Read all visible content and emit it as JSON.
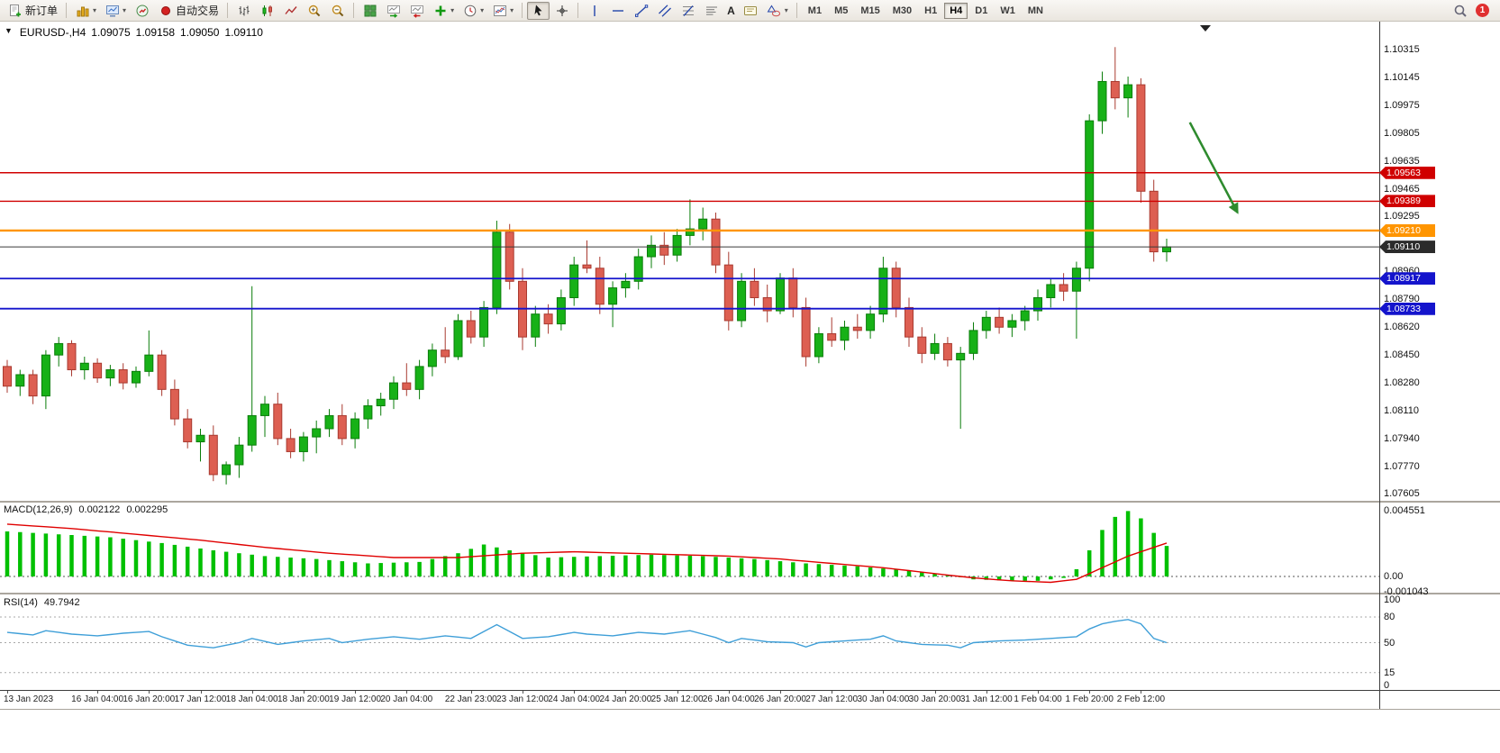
{
  "icons": {
    "one_click_toggle": "▼",
    "dropdown_caret": "▾"
  },
  "toolbar": {
    "new_order_label": "新订单",
    "autotrading_label": "自动交易",
    "text_tool_label": "A",
    "timeframes": [
      "M1",
      "M5",
      "M15",
      "M30",
      "H1",
      "H4",
      "D1",
      "W1",
      "MN"
    ],
    "active_timeframe": "H4",
    "notification_badge": "1"
  },
  "chart": {
    "symbol_period": "EURUSD-,H4",
    "ohlc": {
      "open": "1.09075",
      "high": "1.09158",
      "low": "1.09050",
      "close": "1.09110"
    },
    "scale": {
      "min": 1.0756,
      "max": 1.1048
    },
    "price_axis_labels": [
      "1.10315",
      "1.10145",
      "1.09975",
      "1.09805",
      "1.09635",
      "1.09465",
      "1.09295",
      "1.08960",
      "1.08790",
      "1.08620",
      "1.08450",
      "1.08280",
      "1.08110",
      "1.07940",
      "1.07770",
      "1.07605"
    ],
    "hlines": [
      {
        "price": 1.09563,
        "label": "1.09563",
        "color": "#d00000",
        "width": 1.4
      },
      {
        "price": 1.09389,
        "label": "1.09389",
        "color": "#d00000",
        "width": 1.4
      },
      {
        "price": 1.0921,
        "label": "1.09210",
        "color": "#ff9500",
        "width": 2.4
      },
      {
        "price": 1.08917,
        "label": "1.08917",
        "color": "#1414cc",
        "width": 1.8
      },
      {
        "price": 1.08733,
        "label": "1.08733",
        "color": "#1414cc",
        "width": 1.8
      }
    ],
    "bid_line": {
      "price": 1.0911,
      "label": "1.09110",
      "color": "#3a3a3a",
      "tag_bg": "#2b2b2b"
    },
    "candles": [
      [
        1.0838,
        1.0842,
        1.0822,
        1.0826
      ],
      [
        1.0826,
        1.0836,
        1.082,
        1.0833
      ],
      [
        1.0833,
        1.0836,
        1.0815,
        1.082
      ],
      [
        1.082,
        1.0848,
        1.0812,
        1.0845
      ],
      [
        1.0845,
        1.0856,
        1.0838,
        1.0852
      ],
      [
        1.0852,
        1.0854,
        1.0832,
        1.0836
      ],
      [
        1.0836,
        1.0844,
        1.083,
        1.084
      ],
      [
        1.084,
        1.0843,
        1.0828,
        1.0831
      ],
      [
        1.0831,
        1.0839,
        1.0826,
        1.0836
      ],
      [
        1.0836,
        1.084,
        1.0824,
        1.0828
      ],
      [
        1.0828,
        1.0838,
        1.0825,
        1.0835
      ],
      [
        1.0835,
        1.086,
        1.0832,
        1.0845
      ],
      [
        1.0845,
        1.0848,
        1.082,
        1.0824
      ],
      [
        1.0824,
        1.083,
        1.0802,
        1.0806
      ],
      [
        1.0806,
        1.0812,
        1.0788,
        1.0792
      ],
      [
        1.0792,
        1.08,
        1.078,
        1.0796
      ],
      [
        1.0796,
        1.0802,
        1.0768,
        1.0772
      ],
      [
        1.0772,
        1.078,
        1.0766,
        1.0778
      ],
      [
        1.0778,
        1.0795,
        1.077,
        1.079
      ],
      [
        1.079,
        1.0887,
        1.0786,
        1.0808
      ],
      [
        1.0808,
        1.082,
        1.0795,
        1.0815
      ],
      [
        1.0815,
        1.0822,
        1.079,
        1.0794
      ],
      [
        1.0794,
        1.08,
        1.0782,
        1.0786
      ],
      [
        1.0786,
        1.0798,
        1.078,
        1.0795
      ],
      [
        1.0795,
        1.0805,
        1.0785,
        1.08
      ],
      [
        1.08,
        1.0812,
        1.0795,
        1.0808
      ],
      [
        1.0808,
        1.0815,
        1.079,
        1.0794
      ],
      [
        1.0794,
        1.081,
        1.0788,
        1.0806
      ],
      [
        1.0806,
        1.0818,
        1.08,
        1.0814
      ],
      [
        1.0814,
        1.0822,
        1.0808,
        1.0818
      ],
      [
        1.0818,
        1.0832,
        1.0812,
        1.0828
      ],
      [
        1.0828,
        1.084,
        1.082,
        1.0824
      ],
      [
        1.0824,
        1.0842,
        1.0818,
        1.0838
      ],
      [
        1.0838,
        1.0852,
        1.0832,
        1.0848
      ],
      [
        1.0848,
        1.0862,
        1.084,
        1.0844
      ],
      [
        1.0844,
        1.087,
        1.0842,
        1.0866
      ],
      [
        1.0866,
        1.0872,
        1.0852,
        1.0856
      ],
      [
        1.0856,
        1.0878,
        1.085,
        1.0874
      ],
      [
        1.0874,
        1.0927,
        1.087,
        1.092
      ],
      [
        1.092,
        1.0925,
        1.0885,
        1.089
      ],
      [
        1.089,
        1.0898,
        1.0848,
        1.0856
      ],
      [
        1.0856,
        1.0875,
        1.085,
        1.087
      ],
      [
        1.087,
        1.0876,
        1.0858,
        1.0864
      ],
      [
        1.0864,
        1.0885,
        1.086,
        1.088
      ],
      [
        1.088,
        1.0905,
        1.0875,
        1.09
      ],
      [
        1.09,
        1.0915,
        1.0895,
        1.0898
      ],
      [
        1.0898,
        1.0905,
        1.087,
        1.0876
      ],
      [
        1.0876,
        1.089,
        1.0862,
        1.0886
      ],
      [
        1.0886,
        1.0895,
        1.088,
        1.089
      ],
      [
        1.089,
        1.091,
        1.0885,
        1.0905
      ],
      [
        1.0905,
        1.0918,
        1.0898,
        1.0912
      ],
      [
        1.0912,
        1.092,
        1.09,
        1.0906
      ],
      [
        1.0906,
        1.0922,
        1.0902,
        1.0918
      ],
      [
        1.0918,
        1.094,
        1.0912,
        1.0922
      ],
      [
        1.0922,
        1.0935,
        1.0915,
        1.0928
      ],
      [
        1.0928,
        1.0932,
        1.0895,
        1.09
      ],
      [
        1.09,
        1.0908,
        1.086,
        1.0866
      ],
      [
        1.0866,
        1.0895,
        1.0862,
        1.089
      ],
      [
        1.089,
        1.0898,
        1.0875,
        1.088
      ],
      [
        1.088,
        1.0888,
        1.0865,
        1.0872
      ],
      [
        1.0872,
        1.0895,
        1.087,
        1.0892
      ],
      [
        1.0892,
        1.0898,
        1.0868,
        1.0874
      ],
      [
        1.0874,
        1.088,
        1.0838,
        1.0844
      ],
      [
        1.0844,
        1.0862,
        1.084,
        1.0858
      ],
      [
        1.0858,
        1.0868,
        1.085,
        1.0854
      ],
      [
        1.0854,
        1.0866,
        1.0848,
        1.0862
      ],
      [
        1.0862,
        1.087,
        1.0855,
        1.086
      ],
      [
        1.086,
        1.0875,
        1.0855,
        1.087
      ],
      [
        1.087,
        1.0905,
        1.0865,
        1.0898
      ],
      [
        1.0898,
        1.0902,
        1.0868,
        1.0874
      ],
      [
        1.0874,
        1.088,
        1.085,
        1.0856
      ],
      [
        1.0856,
        1.0862,
        1.084,
        1.0846
      ],
      [
        1.0846,
        1.0858,
        1.0842,
        1.0852
      ],
      [
        1.0852,
        1.0856,
        1.0838,
        1.0842
      ],
      [
        1.0842,
        1.085,
        1.08,
        1.0846
      ],
      [
        1.0846,
        1.0865,
        1.0842,
        1.086
      ],
      [
        1.086,
        1.0872,
        1.0855,
        1.0868
      ],
      [
        1.0868,
        1.0874,
        1.0858,
        1.0862
      ],
      [
        1.0862,
        1.087,
        1.0856,
        1.0866
      ],
      [
        1.0866,
        1.0875,
        1.086,
        1.0872
      ],
      [
        1.0872,
        1.0885,
        1.0866,
        1.088
      ],
      [
        1.088,
        1.0892,
        1.0874,
        1.0888
      ],
      [
        1.0888,
        1.0895,
        1.0878,
        1.0884
      ],
      [
        1.0884,
        1.0902,
        1.0855,
        1.0898
      ],
      [
        1.0898,
        1.0992,
        1.089,
        1.0988
      ],
      [
        1.0988,
        1.1018,
        1.098,
        1.1012
      ],
      [
        1.1012,
        1.1033,
        1.0995,
        1.1002
      ],
      [
        1.1002,
        1.1015,
        1.099,
        1.101
      ],
      [
        1.101,
        1.1014,
        1.0938,
        1.0945
      ],
      [
        1.0945,
        1.0952,
        1.0902,
        1.0908
      ],
      [
        1.0908,
        1.0916,
        1.0902,
        1.0911
      ]
    ],
    "time_axis": [
      {
        "label": "13 Jan 2023",
        "bar": 0
      },
      {
        "label": "16 Jan 04:00",
        "bar": 7
      },
      {
        "label": "16 Jan 20:00",
        "bar": 11
      },
      {
        "label": "17 Jan 12:00",
        "bar": 15
      },
      {
        "label": "18 Jan 04:00",
        "bar": 19
      },
      {
        "label": "18 Jan 20:00",
        "bar": 23
      },
      {
        "label": "19 Jan 12:00",
        "bar": 27
      },
      {
        "label": "20 Jan 04:00",
        "bar": 31
      },
      {
        "label": "22 Jan 23:00",
        "bar": 36
      },
      {
        "label": "23 Jan 12:00",
        "bar": 40
      },
      {
        "label": "24 Jan 04:00",
        "bar": 44
      },
      {
        "label": "24 Jan 20:00",
        "bar": 48
      },
      {
        "label": "25 Jan 12:00",
        "bar": 52
      },
      {
        "label": "26 Jan 04:00",
        "bar": 56
      },
      {
        "label": "26 Jan 20:00",
        "bar": 60
      },
      {
        "label": "27 Jan 12:00",
        "bar": 64
      },
      {
        "label": "30 Jan 04:00",
        "bar": 68
      },
      {
        "label": "30 Jan 20:00",
        "bar": 72
      },
      {
        "label": "31 Jan 12:00",
        "bar": 76
      },
      {
        "label": "1 Feb 04:00",
        "bar": 80
      },
      {
        "label": "1 Feb 20:00",
        "bar": 84
      },
      {
        "label": "2 Feb 12:00",
        "bar": 88
      }
    ],
    "annotations": {
      "arrow": {
        "bar1": 91.8,
        "price1": 1.0987,
        "bar2": 95.5,
        "price2": 1.0932,
        "color": "#2e8b2e"
      }
    }
  },
  "macd": {
    "name": "MACD(12,26,9)",
    "value_main": "0.002122",
    "value_signal": "0.002295",
    "axis": [
      {
        "label": "0.004551",
        "v": 0.004551
      },
      {
        "label": "0.00",
        "v": 0
      },
      {
        "label": "-0.001043",
        "v": -0.001043
      }
    ],
    "hist_color": "#00c000",
    "signal_color": "#e00000",
    "histogram": [
      [
        0,
        0.0031
      ],
      [
        4,
        0.0029
      ],
      [
        8,
        0.0027
      ],
      [
        12,
        0.0023
      ],
      [
        16,
        0.0018
      ],
      [
        20,
        0.0014
      ],
      [
        24,
        0.0012
      ],
      [
        28,
        0.0009
      ],
      [
        32,
        0.001
      ],
      [
        35,
        0.0016
      ],
      [
        37,
        0.0022
      ],
      [
        39,
        0.0018
      ],
      [
        42,
        0.0013
      ],
      [
        46,
        0.0014
      ],
      [
        50,
        0.0015
      ],
      [
        54,
        0.0014
      ],
      [
        58,
        0.0012
      ],
      [
        62,
        0.0009
      ],
      [
        66,
        0.0007
      ],
      [
        70,
        0.0004
      ],
      [
        73,
        0.0001
      ],
      [
        75,
        -0.0002
      ],
      [
        78,
        -0.0003
      ],
      [
        80,
        -0.0003
      ],
      [
        82,
        -0.0001
      ],
      [
        83,
        0.0005
      ],
      [
        84,
        0.0018
      ],
      [
        85,
        0.0032
      ],
      [
        86,
        0.0041
      ],
      [
        87,
        0.0045
      ],
      [
        88,
        0.004
      ],
      [
        89,
        0.003
      ],
      [
        90,
        0.0021
      ]
    ],
    "signal": [
      [
        0,
        0.0036
      ],
      [
        5,
        0.0033
      ],
      [
        10,
        0.0029
      ],
      [
        15,
        0.0025
      ],
      [
        20,
        0.002
      ],
      [
        25,
        0.0016
      ],
      [
        30,
        0.0013
      ],
      [
        35,
        0.0013
      ],
      [
        40,
        0.0016
      ],
      [
        44,
        0.0017
      ],
      [
        48,
        0.0016
      ],
      [
        52,
        0.0015
      ],
      [
        56,
        0.0014
      ],
      [
        60,
        0.0012
      ],
      [
        64,
        0.0009
      ],
      [
        68,
        0.0006
      ],
      [
        72,
        0.0002
      ],
      [
        75,
        -0.0001
      ],
      [
        78,
        -0.0003
      ],
      [
        81,
        -0.0004
      ],
      [
        83,
        -0.0002
      ],
      [
        85,
        0.0006
      ],
      [
        87,
        0.0014
      ],
      [
        89,
        0.002
      ],
      [
        90,
        0.0023
      ]
    ]
  },
  "rsi": {
    "name": "RSI(14)",
    "value": "49.7942",
    "axis": [
      {
        "label": "100",
        "v": 100
      },
      {
        "label": "80",
        "v": 80
      },
      {
        "label": "50",
        "v": 50
      },
      {
        "label": "15",
        "v": 15
      },
      {
        "label": "0",
        "v": 0
      }
    ],
    "levels": [
      80,
      50,
      15
    ],
    "line_color": "#3f9fd8",
    "points": [
      [
        0,
        62
      ],
      [
        2,
        59
      ],
      [
        3,
        64
      ],
      [
        5,
        60
      ],
      [
        7,
        58
      ],
      [
        9,
        61
      ],
      [
        11,
        63
      ],
      [
        12,
        57
      ],
      [
        14,
        47
      ],
      [
        16,
        44
      ],
      [
        18,
        50
      ],
      [
        19,
        55
      ],
      [
        21,
        48
      ],
      [
        23,
        52
      ],
      [
        25,
        55
      ],
      [
        26,
        50
      ],
      [
        28,
        54
      ],
      [
        30,
        57
      ],
      [
        32,
        54
      ],
      [
        34,
        58
      ],
      [
        36,
        55
      ],
      [
        38,
        71
      ],
      [
        39,
        63
      ],
      [
        40,
        55
      ],
      [
        42,
        57
      ],
      [
        44,
        62
      ],
      [
        45,
        60
      ],
      [
        47,
        58
      ],
      [
        49,
        62
      ],
      [
        51,
        60
      ],
      [
        53,
        64
      ],
      [
        55,
        56
      ],
      [
        56,
        50
      ],
      [
        57,
        55
      ],
      [
        59,
        51
      ],
      [
        61,
        50
      ],
      [
        62,
        45
      ],
      [
        63,
        50
      ],
      [
        65,
        52
      ],
      [
        67,
        54
      ],
      [
        68,
        58
      ],
      [
        69,
        52
      ],
      [
        71,
        48
      ],
      [
        73,
        47
      ],
      [
        74,
        44
      ],
      [
        75,
        50
      ],
      [
        77,
        52
      ],
      [
        79,
        53
      ],
      [
        81,
        55
      ],
      [
        83,
        57
      ],
      [
        84,
        66
      ],
      [
        85,
        72
      ],
      [
        86,
        75
      ],
      [
        87,
        77
      ],
      [
        88,
        72
      ],
      [
        89,
        55
      ],
      [
        90,
        50
      ]
    ]
  },
  "colors": {
    "bull_fill": "#17b117",
    "bull_stroke": "#0a7d0a",
    "bear_fill": "#dd5f52",
    "bear_stroke": "#a93a30"
  }
}
